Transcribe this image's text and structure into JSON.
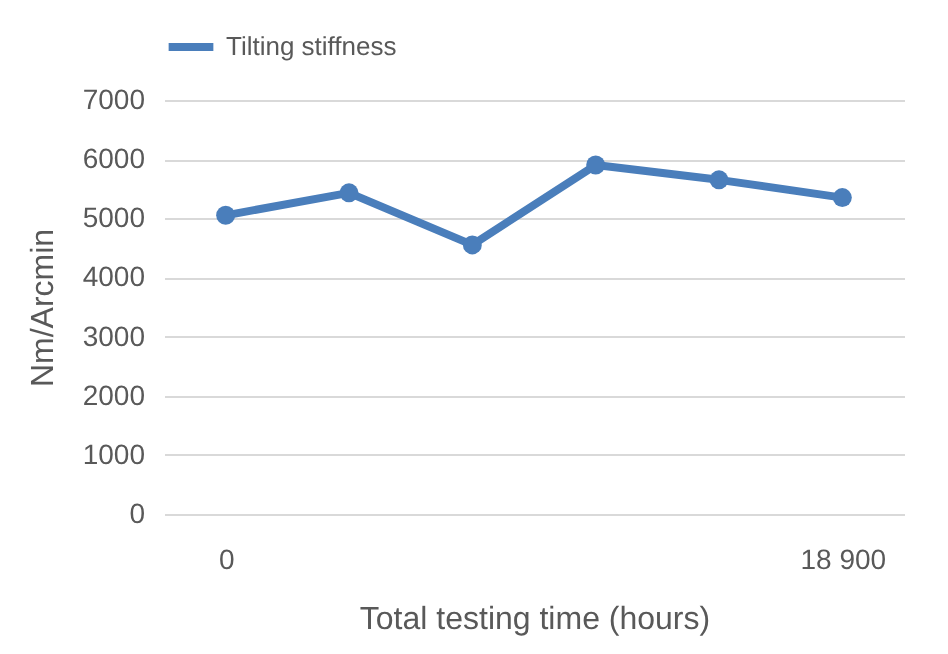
{
  "chart_data": {
    "type": "line",
    "xlabel": "Total testing time (hours)",
    "ylabel": "Nm/Arcmin",
    "categories": [
      "0",
      null,
      null,
      null,
      null,
      "18 900"
    ],
    "series": [
      {
        "name": "Tilting stiffness",
        "color": "#4a7ebb",
        "values": [
          5050,
          5430,
          4550,
          5900,
          5650,
          5350
        ]
      }
    ],
    "ylim": [
      0,
      7000
    ],
    "yticks": [
      0,
      1000,
      2000,
      3000,
      4000,
      5000,
      6000,
      7000
    ],
    "grid": "y",
    "legend": "top",
    "marker": "circle"
  }
}
